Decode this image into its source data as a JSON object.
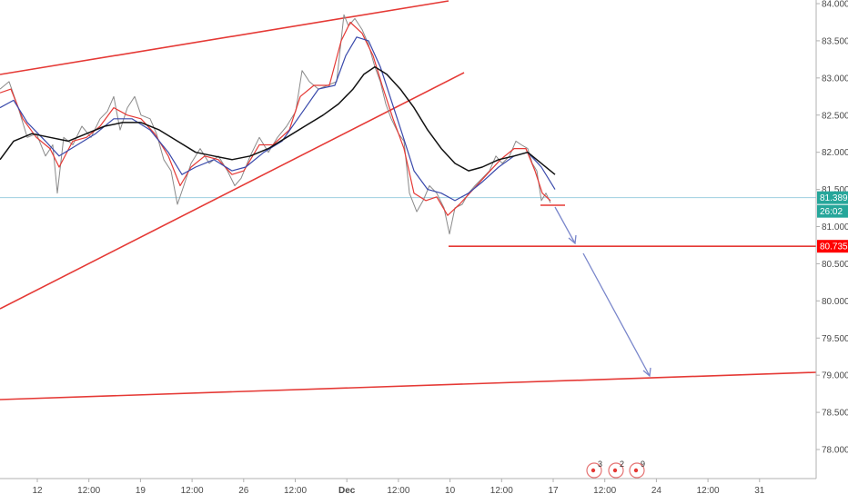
{
  "chart_data": {
    "type": "line",
    "y_ticks": [
      "84.000",
      "83.500",
      "83.000",
      "82.500",
      "82.000",
      "81.500",
      "81.000",
      "80.500",
      "80.000",
      "79.500",
      "79.000",
      "78.500",
      "78.000"
    ],
    "x_ticks": [
      "12",
      "12:00",
      "19",
      "12:00",
      "26",
      "12:00",
      "Dec",
      "12:00",
      "10",
      "12:00",
      "17",
      "12:00",
      "24",
      "12:00",
      "31"
    ],
    "ylim": [
      77.55,
      84.05
    ],
    "grid": false,
    "price_tag": {
      "value": "81.389",
      "color": "#26a69a"
    },
    "countdown_tag": {
      "value": "26:02",
      "color": "#26a69a"
    },
    "target_tag": {
      "value": "80.735",
      "color": "#ff0000"
    },
    "colors": {
      "price": "#8a8a8a",
      "ma_fast": "#e53935",
      "ma_mid": "#3949ab",
      "ma_slow": "#111111",
      "trendline": "#e53935",
      "arrow": "#7986cb"
    },
    "event_markers": [
      {
        "label": "3"
      },
      {
        "label": "2"
      },
      {
        "label": "9"
      }
    ],
    "series": [
      {
        "key": "price",
        "points": [
          [
            0,
            82.85
          ],
          [
            10,
            82.95
          ],
          [
            20,
            82.6
          ],
          [
            30,
            82.2
          ],
          [
            40,
            82.25
          ],
          [
            50,
            81.95
          ],
          [
            58,
            82.1
          ],
          [
            63,
            81.45
          ],
          [
            70,
            82.2
          ],
          [
            80,
            82.1
          ],
          [
            90,
            82.35
          ],
          [
            100,
            82.2
          ],
          [
            110,
            82.45
          ],
          [
            118,
            82.55
          ],
          [
            125,
            82.75
          ],
          [
            132,
            82.3
          ],
          [
            140,
            82.6
          ],
          [
            148,
            82.75
          ],
          [
            155,
            82.5
          ],
          [
            165,
            82.45
          ],
          [
            172,
            82.25
          ],
          [
            180,
            81.9
          ],
          [
            188,
            81.75
          ],
          [
            195,
            81.3
          ],
          [
            202,
            81.55
          ],
          [
            210,
            81.85
          ],
          [
            220,
            82.05
          ],
          [
            230,
            81.85
          ],
          [
            240,
            81.95
          ],
          [
            250,
            81.75
          ],
          [
            258,
            81.55
          ],
          [
            265,
            81.65
          ],
          [
            275,
            81.95
          ],
          [
            285,
            82.2
          ],
          [
            295,
            82.0
          ],
          [
            305,
            82.2
          ],
          [
            315,
            82.35
          ],
          [
            325,
            82.55
          ],
          [
            332,
            83.1
          ],
          [
            340,
            82.95
          ],
          [
            350,
            82.85
          ],
          [
            360,
            82.9
          ],
          [
            370,
            82.95
          ],
          [
            378,
            83.85
          ],
          [
            383,
            83.7
          ],
          [
            390,
            83.8
          ],
          [
            398,
            83.65
          ],
          [
            405,
            83.45
          ],
          [
            412,
            83.15
          ],
          [
            418,
            82.95
          ],
          [
            424,
            82.65
          ],
          [
            430,
            82.45
          ],
          [
            438,
            82.25
          ],
          [
            444,
            82.15
          ],
          [
            450,
            81.45
          ],
          [
            458,
            81.2
          ],
          [
            465,
            81.35
          ],
          [
            472,
            81.55
          ],
          [
            480,
            81.45
          ],
          [
            488,
            81.25
          ],
          [
            494,
            80.9
          ],
          [
            500,
            81.25
          ],
          [
            508,
            81.3
          ],
          [
            515,
            81.45
          ],
          [
            522,
            81.55
          ],
          [
            530,
            81.65
          ],
          [
            538,
            81.75
          ],
          [
            545,
            81.95
          ],
          [
            552,
            81.85
          ],
          [
            560,
            81.95
          ],
          [
            567,
            82.15
          ],
          [
            573,
            82.1
          ],
          [
            580,
            82.05
          ],
          [
            585,
            81.85
          ],
          [
            590,
            81.75
          ],
          [
            595,
            81.35
          ],
          [
            600,
            81.45
          ],
          [
            605,
            81.32
          ]
        ]
      },
      {
        "key": "ma_fast",
        "points": [
          [
            0,
            82.8
          ],
          [
            12,
            82.85
          ],
          [
            25,
            82.45
          ],
          [
            40,
            82.2
          ],
          [
            55,
            82.05
          ],
          [
            65,
            81.8
          ],
          [
            80,
            82.15
          ],
          [
            95,
            82.2
          ],
          [
            110,
            82.35
          ],
          [
            125,
            82.6
          ],
          [
            140,
            82.5
          ],
          [
            155,
            82.45
          ],
          [
            170,
            82.25
          ],
          [
            185,
            81.95
          ],
          [
            198,
            81.55
          ],
          [
            210,
            81.8
          ],
          [
            225,
            81.95
          ],
          [
            240,
            81.9
          ],
          [
            255,
            81.7
          ],
          [
            268,
            81.75
          ],
          [
            285,
            82.1
          ],
          [
            300,
            82.1
          ],
          [
            318,
            82.3
          ],
          [
            330,
            82.75
          ],
          [
            345,
            82.9
          ],
          [
            362,
            82.9
          ],
          [
            375,
            83.5
          ],
          [
            385,
            83.75
          ],
          [
            398,
            83.6
          ],
          [
            410,
            83.3
          ],
          [
            420,
            82.9
          ],
          [
            432,
            82.45
          ],
          [
            444,
            82.05
          ],
          [
            455,
            81.45
          ],
          [
            468,
            81.35
          ],
          [
            480,
            81.4
          ],
          [
            492,
            81.15
          ],
          [
            505,
            81.3
          ],
          [
            520,
            81.5
          ],
          [
            535,
            81.7
          ],
          [
            550,
            81.9
          ],
          [
            565,
            82.05
          ],
          [
            578,
            82.05
          ],
          [
            588,
            81.75
          ],
          [
            596,
            81.45
          ],
          [
            605,
            81.35
          ]
        ]
      },
      {
        "key": "ma_mid",
        "points": [
          [
            0,
            82.6
          ],
          [
            15,
            82.7
          ],
          [
            30,
            82.4
          ],
          [
            50,
            82.15
          ],
          [
            65,
            81.95
          ],
          [
            85,
            82.1
          ],
          [
            105,
            82.25
          ],
          [
            125,
            82.45
          ],
          [
            145,
            82.45
          ],
          [
            165,
            82.3
          ],
          [
            185,
            82.0
          ],
          [
            200,
            81.7
          ],
          [
            215,
            81.8
          ],
          [
            235,
            81.9
          ],
          [
            255,
            81.75
          ],
          [
            270,
            81.8
          ],
          [
            290,
            82.0
          ],
          [
            310,
            82.15
          ],
          [
            330,
            82.5
          ],
          [
            350,
            82.85
          ],
          [
            368,
            82.9
          ],
          [
            380,
            83.3
          ],
          [
            392,
            83.55
          ],
          [
            405,
            83.5
          ],
          [
            418,
            83.15
          ],
          [
            430,
            82.7
          ],
          [
            442,
            82.25
          ],
          [
            455,
            81.75
          ],
          [
            470,
            81.5
          ],
          [
            485,
            81.45
          ],
          [
            500,
            81.35
          ],
          [
            515,
            81.45
          ],
          [
            530,
            81.6
          ],
          [
            548,
            81.8
          ],
          [
            565,
            81.95
          ],
          [
            580,
            82.0
          ],
          [
            595,
            81.8
          ],
          [
            610,
            81.5
          ]
        ]
      },
      {
        "key": "ma_slow",
        "points": [
          [
            0,
            81.9
          ],
          [
            15,
            82.15
          ],
          [
            35,
            82.25
          ],
          [
            55,
            82.2
          ],
          [
            75,
            82.15
          ],
          [
            95,
            82.25
          ],
          [
            115,
            82.35
          ],
          [
            135,
            82.4
          ],
          [
            155,
            82.4
          ],
          [
            175,
            82.3
          ],
          [
            195,
            82.15
          ],
          [
            215,
            82.0
          ],
          [
            235,
            81.95
          ],
          [
            255,
            81.9
          ],
          [
            275,
            81.95
          ],
          [
            295,
            82.05
          ],
          [
            315,
            82.2
          ],
          [
            335,
            82.35
          ],
          [
            355,
            82.5
          ],
          [
            372,
            82.65
          ],
          [
            388,
            82.85
          ],
          [
            400,
            83.05
          ],
          [
            412,
            83.15
          ],
          [
            425,
            83.05
          ],
          [
            440,
            82.85
          ],
          [
            455,
            82.6
          ],
          [
            470,
            82.3
          ],
          [
            485,
            82.05
          ],
          [
            500,
            81.85
          ],
          [
            515,
            81.75
          ],
          [
            530,
            81.8
          ],
          [
            548,
            81.9
          ],
          [
            565,
            81.95
          ],
          [
            580,
            82.0
          ],
          [
            595,
            81.85
          ],
          [
            610,
            81.7
          ]
        ]
      }
    ]
  }
}
